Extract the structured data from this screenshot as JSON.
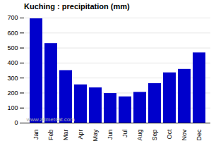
{
  "chart_data": {
    "type": "bar",
    "title": "Kuching : precipitation (mm)",
    "categories": [
      "Jan",
      "Feb",
      "Mar",
      "Apr",
      "May",
      "Jun",
      "Jul",
      "Aug",
      "Sep",
      "Oct",
      "Nov",
      "Dec"
    ],
    "values": [
      695,
      530,
      350,
      255,
      235,
      197,
      175,
      205,
      263,
      335,
      358,
      468
    ],
    "color": "#0000cc",
    "ylim": [
      0,
      700
    ],
    "yticks": [
      0,
      100,
      200,
      300,
      400,
      500,
      600,
      700
    ],
    "grid": true,
    "annotation": "www.allmetsat.com"
  }
}
